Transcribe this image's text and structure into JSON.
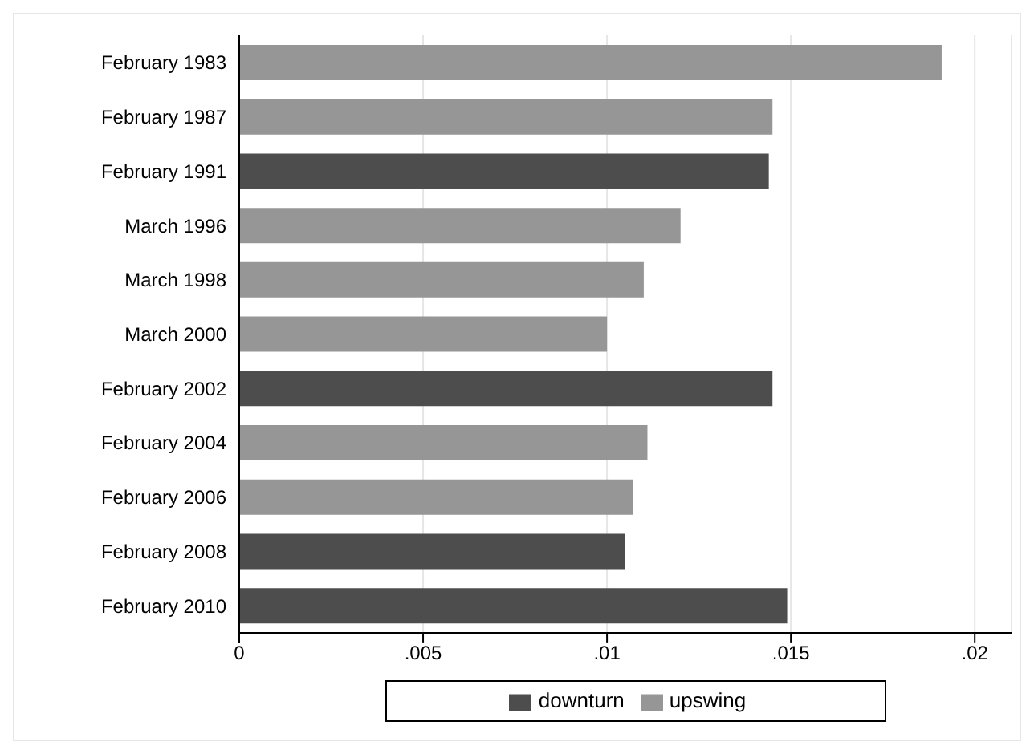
{
  "chart_data": {
    "type": "bar",
    "orientation": "horizontal",
    "stacked": true,
    "categories": [
      "February 1983",
      "February 1987",
      "February 1991",
      "March 1996",
      "March 1998",
      "March 2000",
      "February 2002",
      "February 2004",
      "February 2006",
      "February 2008",
      "February 2010"
    ],
    "series": [
      {
        "name": "upswing",
        "color": "#969696",
        "values": [
          0.0191,
          0.0145,
          null,
          0.012,
          0.011,
          0.01,
          null,
          0.0111,
          0.0107,
          null,
          null
        ]
      },
      {
        "name": "downturn",
        "color": "#4d4d4d",
        "values": [
          null,
          null,
          0.0144,
          null,
          null,
          null,
          0.0145,
          null,
          null,
          0.0105,
          0.0149
        ]
      }
    ],
    "xlim": [
      0,
      0.021
    ],
    "xticks": [
      0,
      {
        "value": 0.005,
        "label": ".005"
      },
      {
        "value": 0.01,
        "label": ".01"
      },
      {
        "value": 0.015,
        "label": ".015"
      },
      {
        "value": 0.02,
        "label": ".02"
      }
    ],
    "grid": "x",
    "legend": "bottom"
  }
}
